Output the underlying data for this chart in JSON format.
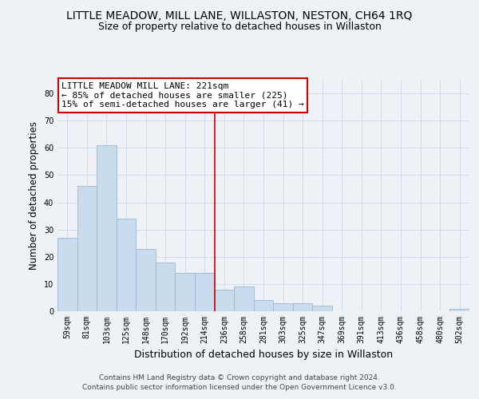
{
  "title": "LITTLE MEADOW, MILL LANE, WILLASTON, NESTON, CH64 1RQ",
  "subtitle": "Size of property relative to detached houses in Willaston",
  "xlabel": "Distribution of detached houses by size in Willaston",
  "ylabel": "Number of detached properties",
  "bar_labels": [
    "59sqm",
    "81sqm",
    "103sqm",
    "125sqm",
    "148sqm",
    "170sqm",
    "192sqm",
    "214sqm",
    "236sqm",
    "258sqm",
    "281sqm",
    "303sqm",
    "325sqm",
    "347sqm",
    "369sqm",
    "391sqm",
    "413sqm",
    "436sqm",
    "458sqm",
    "480sqm",
    "502sqm"
  ],
  "bar_values": [
    27,
    46,
    61,
    34,
    23,
    18,
    14,
    14,
    8,
    9,
    4,
    3,
    3,
    2,
    0,
    0,
    0,
    0,
    0,
    0,
    1
  ],
  "bar_color": "#c8dced",
  "bar_edge_color": "#9ab8d0",
  "vline_x": 7.5,
  "vline_color": "#cc0000",
  "annotation_text": "LITTLE MEADOW MILL LANE: 221sqm\n← 85% of detached houses are smaller (225)\n15% of semi-detached houses are larger (41) →",
  "annotation_box_color": "#ffffff",
  "annotation_box_edge": "#cc0000",
  "ylim": [
    0,
    85
  ],
  "yticks": [
    0,
    10,
    20,
    30,
    40,
    50,
    60,
    70,
    80
  ],
  "grid_color": "#d0dce8",
  "footer_line1": "Contains HM Land Registry data © Crown copyright and database right 2024.",
  "footer_line2": "Contains public sector information licensed under the Open Government Licence v3.0.",
  "bg_color": "#eef2f7",
  "title_fontsize": 10,
  "subtitle_fontsize": 9,
  "xlabel_fontsize": 9,
  "ylabel_fontsize": 8.5,
  "tick_fontsize": 7,
  "annotation_fontsize": 8,
  "footer_fontsize": 6.5
}
